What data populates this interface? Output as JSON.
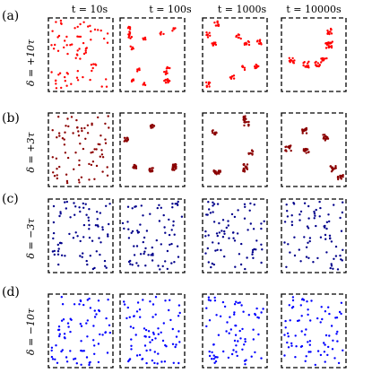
{
  "figure": {
    "column_titles": [
      "t = 10s",
      "t = 100s",
      "t = 1000s",
      "t = 10000s"
    ],
    "rows": [
      {
        "panel_label": "(a)",
        "row_label": "δ = +10τ",
        "color": "#ff0000",
        "pattern": "clusters",
        "cluster_counts": [
          0,
          14,
          10,
          7
        ]
      },
      {
        "panel_label": "(b)",
        "row_label": "δ = +3τ",
        "color": "#8b0000",
        "pattern": "clusters",
        "cluster_counts": [
          0,
          6,
          8,
          6
        ]
      },
      {
        "panel_label": "(c)",
        "row_label": "δ = −3τ",
        "color": "#00008b",
        "pattern": "dispersed"
      },
      {
        "panel_label": "(d)",
        "row_label": "δ = −10τ",
        "color": "#0000ff",
        "pattern": "dispersed"
      }
    ]
  }
}
